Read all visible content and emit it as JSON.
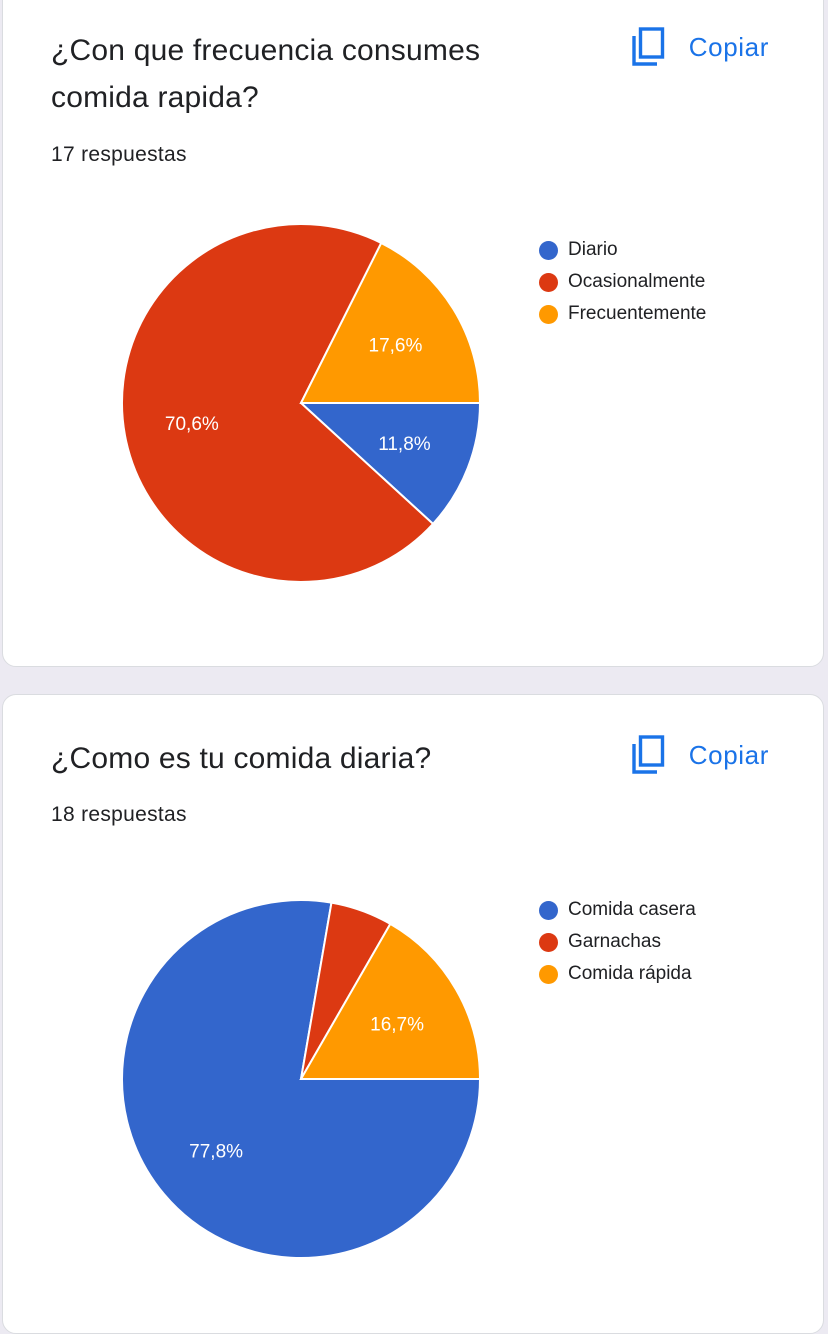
{
  "copy_label": "Copiar",
  "colors": {
    "blue": "#3366cc",
    "red": "#dc3912",
    "orange": "#ff9900",
    "link": "#1a73e8"
  },
  "cards": [
    {
      "title_lines": [
        "¿Con que frecuencia consumes",
        "comida rapida?"
      ],
      "responses": "17 respuestas",
      "legend": [
        {
          "label": "Diario",
          "color": "#3366cc"
        },
        {
          "label": "Ocasionalmente",
          "color": "#dc3912"
        },
        {
          "label": "Frecuentemente",
          "color": "#ff9900"
        }
      ]
    },
    {
      "title_lines": [
        "¿Como es tu comida diaria?"
      ],
      "responses": "18 respuestas",
      "legend": [
        {
          "label": "Comida casera",
          "color": "#3366cc"
        },
        {
          "label": "Garnachas",
          "color": "#dc3912"
        },
        {
          "label": "Comida rápida",
          "color": "#ff9900"
        }
      ]
    }
  ],
  "chart_data": [
    {
      "type": "pie",
      "categories": [
        "Diario",
        "Ocasionalmente",
        "Frecuentemente"
      ],
      "values": [
        11.8,
        70.6,
        17.6
      ],
      "labels": [
        "11,8%",
        "70,6%",
        "17,6%"
      ],
      "colors": [
        "#3366cc",
        "#dc3912",
        "#ff9900"
      ],
      "legend": "right"
    },
    {
      "type": "pie",
      "categories": [
        "Comida casera",
        "Garnachas",
        "Comida rápida"
      ],
      "values": [
        77.8,
        5.6,
        16.7
      ],
      "labels": [
        "77,8%",
        "",
        "16,7%"
      ],
      "colors": [
        "#3366cc",
        "#dc3912",
        "#ff9900"
      ],
      "legend": "right"
    }
  ]
}
